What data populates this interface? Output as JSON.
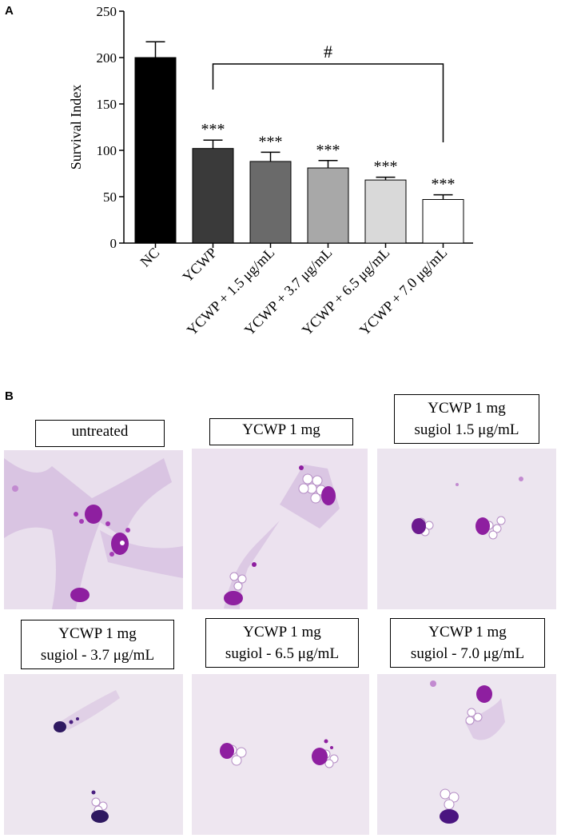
{
  "panel_a_letter": "A",
  "panel_b_letter": "B",
  "chart_data": {
    "type": "bar",
    "categories": [
      "NC",
      "YCWP",
      "YCWP + 1.5 μg/mL",
      "YCWP + 3.7 μg/mL",
      "YCWP + 6.5 μg/mL",
      "YCWP + 7.0 μg/mL"
    ],
    "values": [
      200,
      102,
      88,
      81,
      68,
      47
    ],
    "errors": [
      17,
      9,
      10,
      8,
      3,
      5
    ],
    "significance": [
      "",
      "***",
      "***",
      "***",
      "***",
      "***"
    ],
    "bar_colors": [
      "#000000",
      "#3a3a3a",
      "#6a6a6a",
      "#a8a8a8",
      "#d9d9d9",
      "#ffffff"
    ],
    "ylabel": "Survival Index",
    "ylim": [
      0,
      250
    ],
    "yticks": [
      0,
      50,
      100,
      150,
      200,
      250
    ],
    "bracket": {
      "from_category": "YCWP",
      "to_category": "YCWP + 7.0 μg/mL",
      "symbol": "#"
    }
  },
  "panel_b": {
    "images": [
      {
        "label_lines": [
          "untreated"
        ]
      },
      {
        "label_lines": [
          "YCWP 1 mg"
        ]
      },
      {
        "label_lines": [
          "YCWP 1 mg",
          "sugiol 1.5 μg/mL"
        ]
      },
      {
        "label_lines": [
          "YCWP 1 mg",
          "sugiol - 3.7 μg/mL"
        ]
      },
      {
        "label_lines": [
          "YCWP 1 mg",
          "sugiol - 6.5 μg/mL"
        ]
      },
      {
        "label_lines": [
          "YCWP 1 mg",
          "sugiol - 7.0 μg/mL"
        ]
      }
    ],
    "stain_colors": {
      "background": "#ece4ee",
      "cytoplasm": "#c9a7d6",
      "nucleus": "#8e1fa0",
      "dark_nucleus": "#3a1060"
    }
  }
}
